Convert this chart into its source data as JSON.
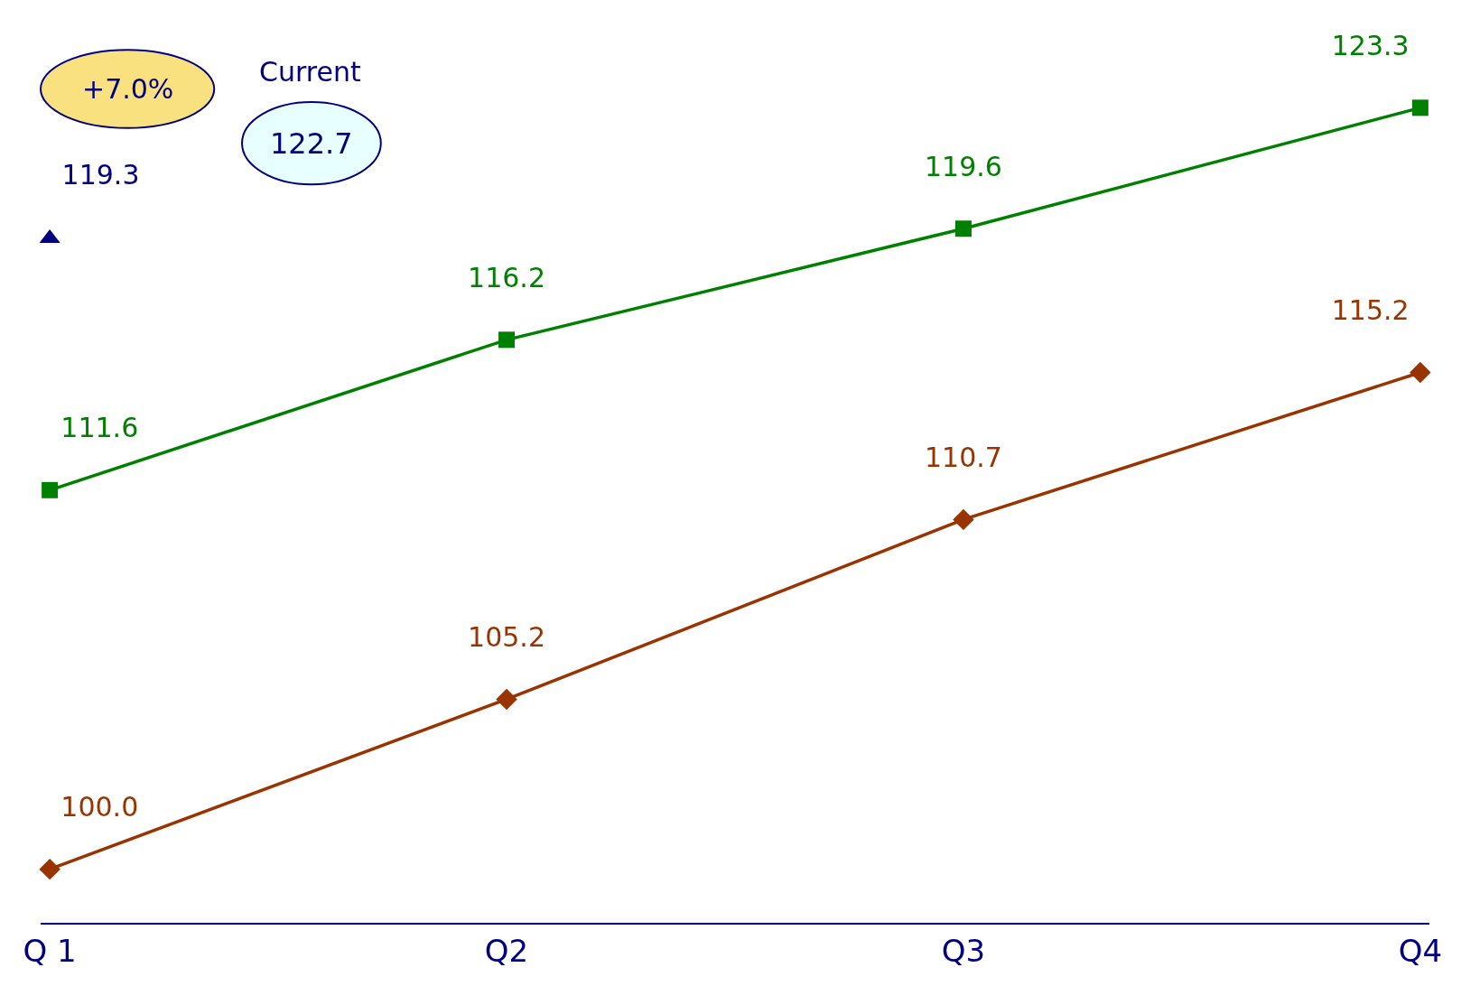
{
  "chart_data": {
    "type": "line",
    "categories": [
      "Q 1",
      "Q2",
      "Q3",
      "Q4"
    ],
    "grid": false,
    "tick_labels": "x",
    "series": [
      {
        "color": "#008000",
        "marker": "square",
        "values": [
          111.6,
          116.2,
          119.6,
          123.3
        ],
        "value_labels": [
          "111.6",
          "116.2",
          "119.6",
          "123.3"
        ]
      },
      {
        "color": "#993300",
        "marker": "diamond",
        "values": [
          100.0,
          105.2,
          110.7,
          115.2
        ],
        "value_labels": [
          "100.0",
          "105.2",
          "110.7",
          "115.2"
        ]
      },
      {
        "type": "scatter",
        "color": "#000080",
        "marker": "triangle",
        "values": [
          119.3,
          null,
          null,
          null
        ],
        "value_labels": [
          "119.3",
          null,
          null,
          null
        ]
      }
    ],
    "annotations": [
      "+7.0%",
      "Current",
      "122.7"
    ]
  }
}
